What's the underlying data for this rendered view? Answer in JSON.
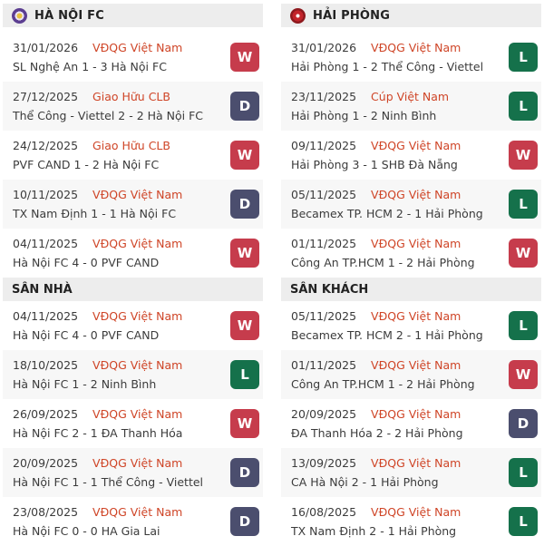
{
  "colors": {
    "win": "#c63c4c",
    "draw": "#4b4e6e",
    "loss": "#15714b",
    "competition": "#cf4527",
    "header_bg": "#ededed",
    "row_alt_bg": "#f7f7f7"
  },
  "columns": [
    {
      "team": {
        "name": "HÀ NỘI FC",
        "logo_icon": "ha-noi-fc-crest"
      },
      "recent_matches": [
        {
          "date": "31/01/2026",
          "competition": "VĐQG Việt Nam",
          "match": "SL Nghệ An 1 - 3 Hà Nội FC",
          "result": "W"
        },
        {
          "date": "27/12/2025",
          "competition": "Giao Hữu CLB",
          "match": "Thể Công - Viettel 2 - 2 Hà Nội FC",
          "result": "D"
        },
        {
          "date": "24/12/2025",
          "competition": "Giao Hữu CLB",
          "match": "PVF CAND 1 - 2 Hà Nội FC",
          "result": "W"
        },
        {
          "date": "10/11/2025",
          "competition": "VĐQG Việt Nam",
          "match": "TX Nam Định 1 - 1 Hà Nội FC",
          "result": "D"
        },
        {
          "date": "04/11/2025",
          "competition": "VĐQG Việt Nam",
          "match": "Hà Nội FC 4 - 0 PVF CAND",
          "result": "W"
        }
      ],
      "section": {
        "title": "SÂN NHÀ",
        "matches": [
          {
            "date": "04/11/2025",
            "competition": "VĐQG Việt Nam",
            "match": "Hà Nội FC 4 - 0 PVF CAND",
            "result": "W"
          },
          {
            "date": "18/10/2025",
            "competition": "VĐQG Việt Nam",
            "match": "Hà Nội FC 1 - 2 Ninh Bình",
            "result": "L"
          },
          {
            "date": "26/09/2025",
            "competition": "VĐQG Việt Nam",
            "match": "Hà Nội FC 2 - 1 ĐA Thanh Hóa",
            "result": "W"
          },
          {
            "date": "20/09/2025",
            "competition": "VĐQG Việt Nam",
            "match": "Hà Nội FC 1 - 1 Thể Công - Viettel",
            "result": "D"
          },
          {
            "date": "23/08/2025",
            "competition": "VĐQG Việt Nam",
            "match": "Hà Nội FC 0 - 0 HA Gia Lai",
            "result": "D"
          }
        ]
      }
    },
    {
      "team": {
        "name": "HẢI PHÒNG",
        "logo_icon": "hai-phong-crest"
      },
      "recent_matches": [
        {
          "date": "31/01/2026",
          "competition": "VĐQG Việt Nam",
          "match": "Hải Phòng 1 - 2 Thể Công - Viettel",
          "result": "L"
        },
        {
          "date": "23/11/2025",
          "competition": "Cúp Việt Nam",
          "match": "Hải Phòng 1 - 2 Ninh Bình",
          "result": "L"
        },
        {
          "date": "09/11/2025",
          "competition": "VĐQG Việt Nam",
          "match": "Hải Phòng 3 - 1 SHB Đà Nẵng",
          "result": "W"
        },
        {
          "date": "05/11/2025",
          "competition": "VĐQG Việt Nam",
          "match": "Becamex TP. HCM 2 - 1 Hải Phòng",
          "result": "L"
        },
        {
          "date": "01/11/2025",
          "competition": "VĐQG Việt Nam",
          "match": "Công An TP.HCM 1 - 2 Hải Phòng",
          "result": "W"
        }
      ],
      "section": {
        "title": "SÂN KHÁCH",
        "matches": [
          {
            "date": "05/11/2025",
            "competition": "VĐQG Việt Nam",
            "match": "Becamex TP. HCM 2 - 1 Hải Phòng",
            "result": "L"
          },
          {
            "date": "01/11/2025",
            "competition": "VĐQG Việt Nam",
            "match": "Công An TP.HCM 1 - 2 Hải Phòng",
            "result": "W"
          },
          {
            "date": "20/09/2025",
            "competition": "VĐQG Việt Nam",
            "match": "ĐA Thanh Hóa 2 - 2 Hải Phòng",
            "result": "D"
          },
          {
            "date": "13/09/2025",
            "competition": "VĐQG Việt Nam",
            "match": "CA Hà Nội 2 - 1 Hải Phòng",
            "result": "L"
          },
          {
            "date": "16/08/2025",
            "competition": "VĐQG Việt Nam",
            "match": "TX Nam Định 2 - 1 Hải Phòng",
            "result": "L"
          }
        ]
      }
    }
  ]
}
